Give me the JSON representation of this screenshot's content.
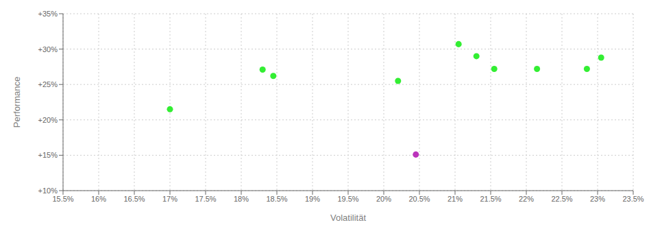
{
  "chart_data": {
    "type": "scatter",
    "xlabel": "Volatilität",
    "ylabel": "Performance",
    "xlim": [
      15.5,
      23.5
    ],
    "ylim": [
      10.0,
      35.0
    ],
    "xticks": [
      {
        "value": 15.5,
        "label": "15.5%"
      },
      {
        "value": 16.0,
        "label": "16%"
      },
      {
        "value": 16.5,
        "label": "16.5%"
      },
      {
        "value": 17.0,
        "label": "17%"
      },
      {
        "value": 17.5,
        "label": "17.5%"
      },
      {
        "value": 18.0,
        "label": "18%"
      },
      {
        "value": 18.5,
        "label": "18.5%"
      },
      {
        "value": 19.0,
        "label": "19%"
      },
      {
        "value": 19.5,
        "label": "19.5%"
      },
      {
        "value": 20.0,
        "label": "20%"
      },
      {
        "value": 20.5,
        "label": "20.5%"
      },
      {
        "value": 21.0,
        "label": "21%"
      },
      {
        "value": 21.5,
        "label": "21.5%"
      },
      {
        "value": 22.0,
        "label": "22%"
      },
      {
        "value": 22.5,
        "label": "22.5%"
      },
      {
        "value": 23.0,
        "label": "23%"
      },
      {
        "value": 23.5,
        "label": "23.5%"
      }
    ],
    "yticks": [
      {
        "value": 10,
        "label": "+10%"
      },
      {
        "value": 15,
        "label": "+15%"
      },
      {
        "value": 20,
        "label": "+20%"
      },
      {
        "value": 25,
        "label": "+25%"
      },
      {
        "value": 30,
        "label": "+30%"
      },
      {
        "value": 35,
        "label": "+35%"
      }
    ],
    "grid": true,
    "series": [
      {
        "color": "#33ee33",
        "x": [
          17.0,
          18.3,
          18.45,
          20.2,
          21.05,
          21.3,
          21.55,
          22.15,
          22.85,
          23.05
        ],
        "values": [
          21.5,
          27.1,
          26.2,
          25.5,
          30.7,
          29.0,
          27.2,
          27.2,
          27.2,
          28.8
        ]
      },
      {
        "color": "#bb33bb",
        "x": [
          20.45
        ],
        "values": [
          15.1
        ]
      }
    ]
  }
}
